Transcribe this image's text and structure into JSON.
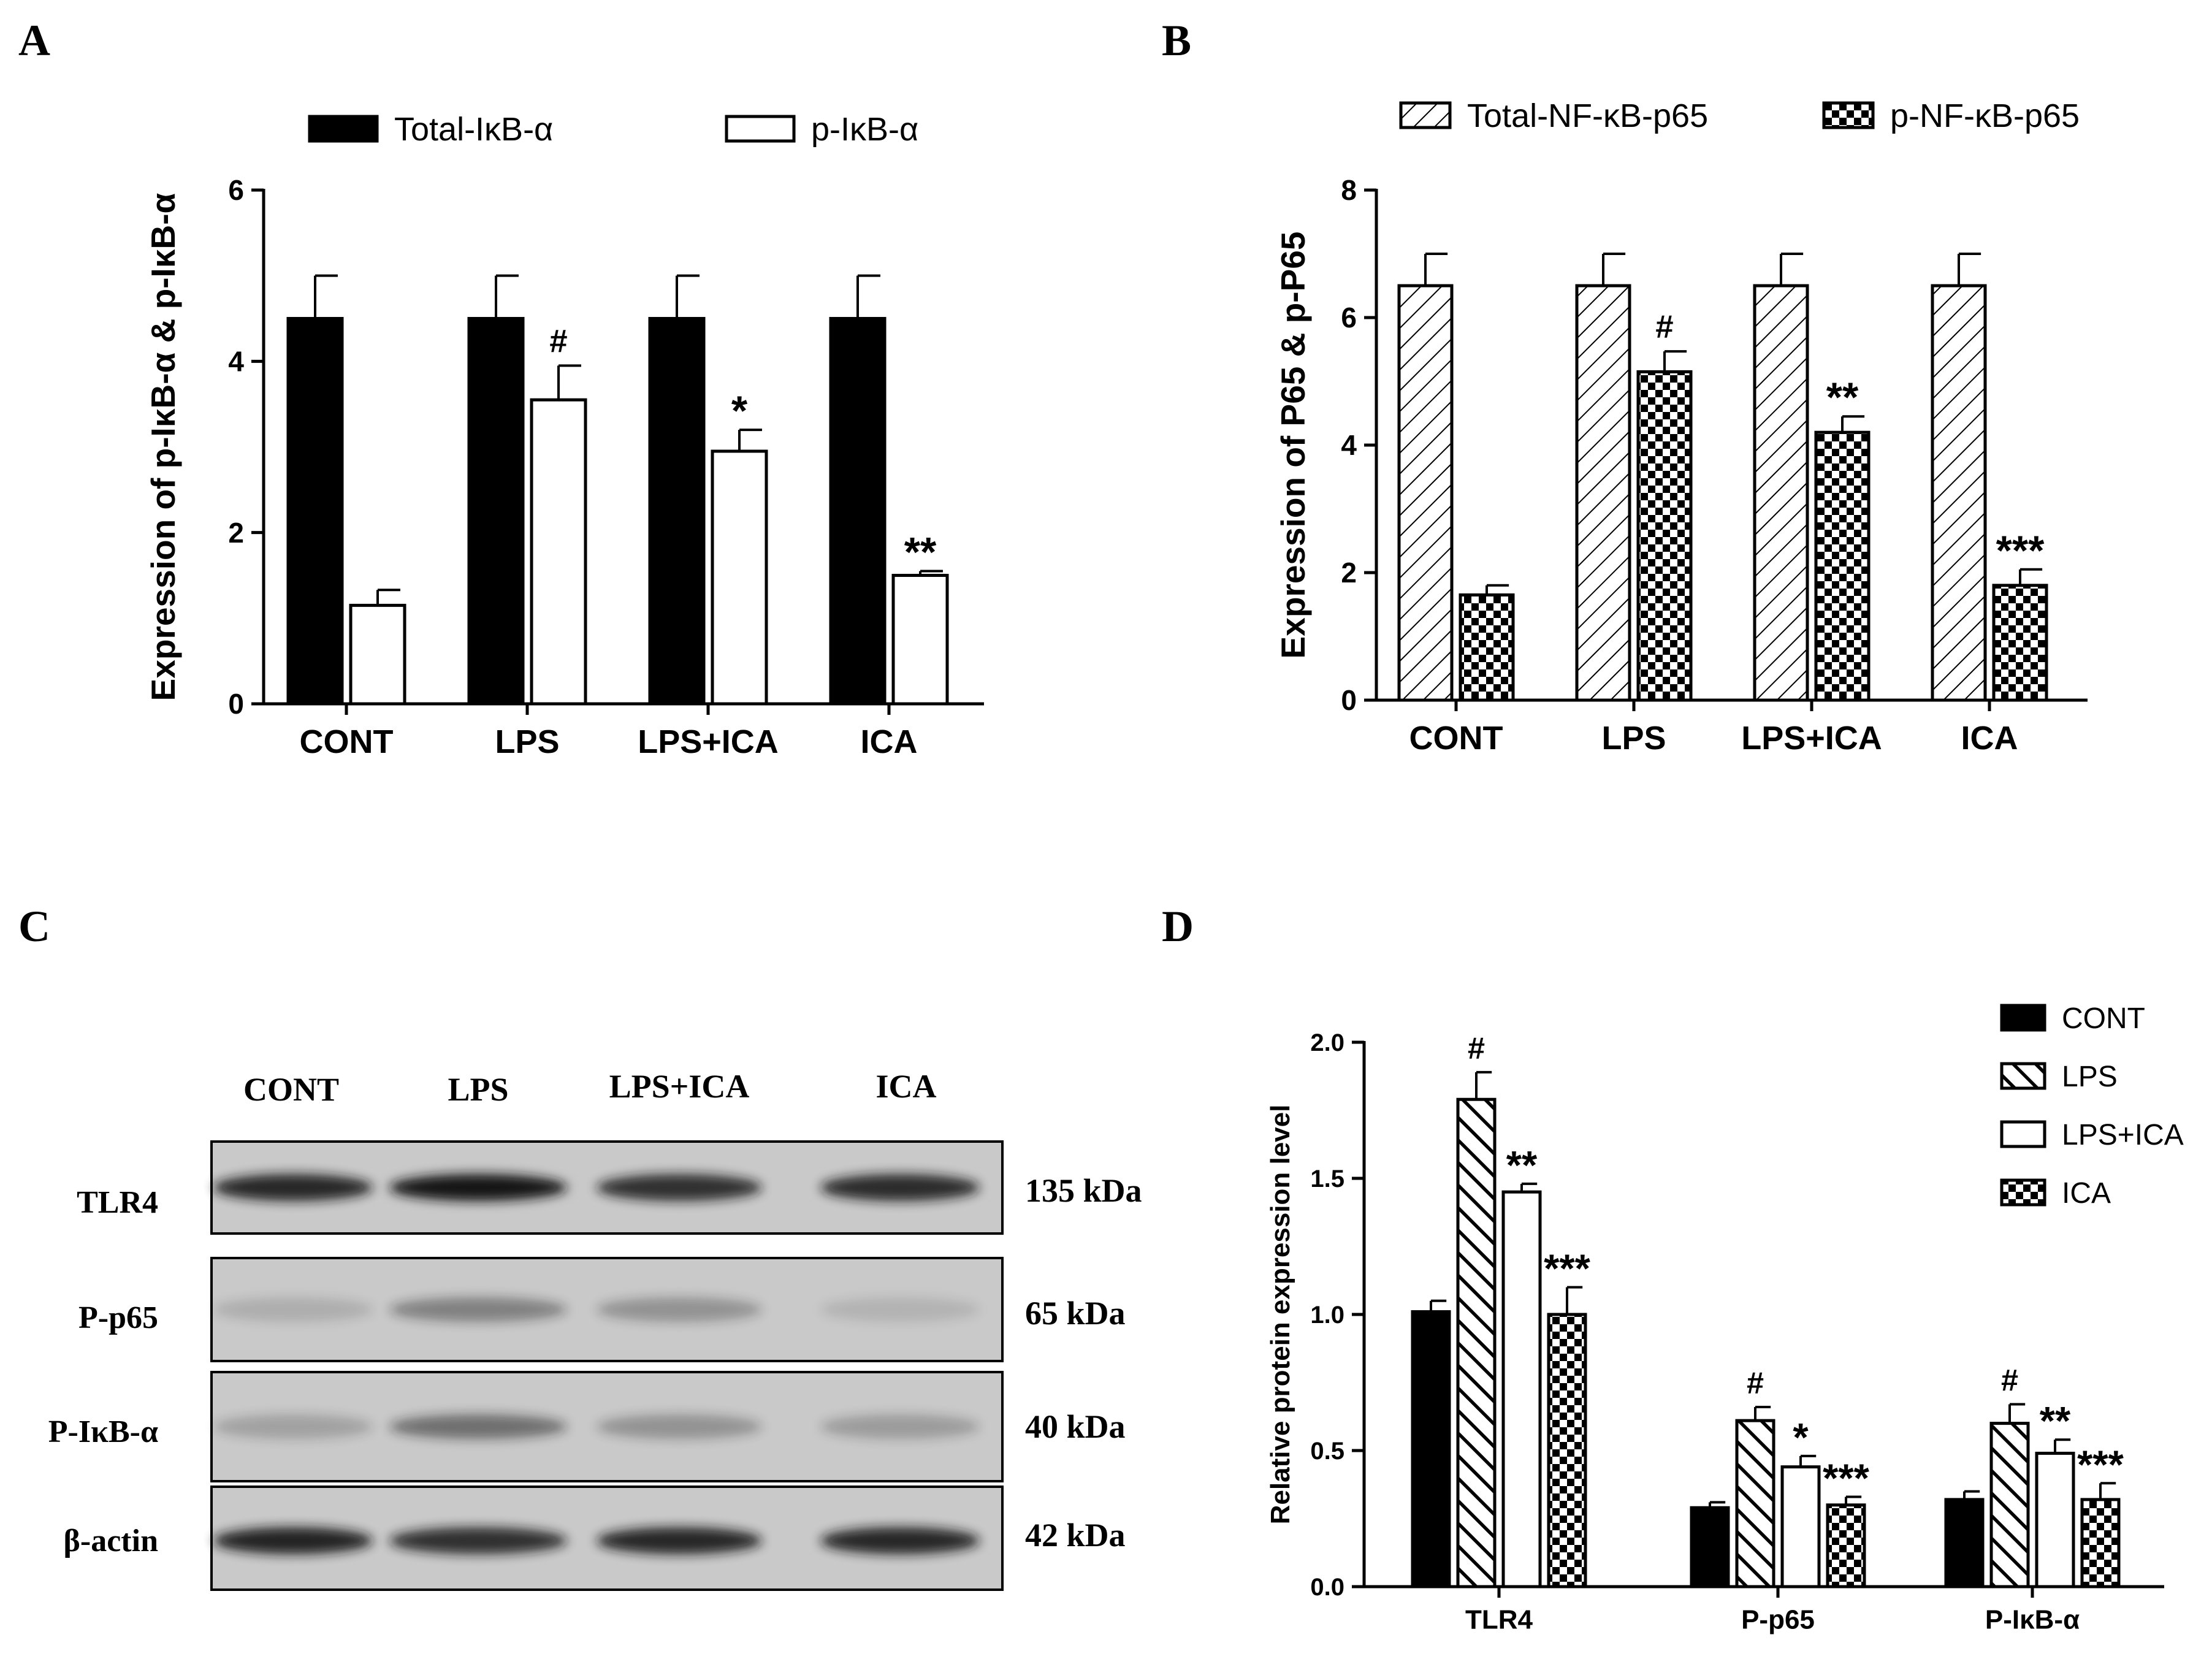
{
  "chart_data": [
    {
      "panel": "A",
      "type": "bar",
      "ylabel": "Expression of p-IκB-α & p-IκB-α",
      "xlabel": "",
      "ylim": [
        0,
        6
      ],
      "yticks": [
        "0",
        "2",
        "4",
        "6"
      ],
      "categories": [
        "CONT",
        "LPS",
        "LPS+ICA",
        "ICA"
      ],
      "legend_position": "top",
      "series": [
        {
          "name": "Total-IκB-α",
          "fill": "solid",
          "values": [
            4.5,
            4.5,
            4.5,
            4.5
          ],
          "errors": [
            0.5,
            0.5,
            0.5,
            0.5
          ],
          "marks": [
            "",
            "",
            "",
            ""
          ]
        },
        {
          "name": "p-IκB-α",
          "fill": "white",
          "values": [
            1.15,
            3.55,
            2.95,
            1.5
          ],
          "errors": [
            0.18,
            0.4,
            0.25,
            0.05
          ],
          "marks": [
            "",
            "#",
            "*",
            "**"
          ]
        }
      ]
    },
    {
      "panel": "B",
      "type": "bar",
      "ylabel": "Expression of P65 & p-P65",
      "xlabel": "",
      "ylim": [
        0,
        8
      ],
      "yticks": [
        "0",
        "2",
        "4",
        "6",
        "8"
      ],
      "categories": [
        "CONT",
        "LPS",
        "LPS+ICA",
        "ICA"
      ],
      "legend_position": "top",
      "series": [
        {
          "name": "Total-NF-κB-p65",
          "fill": "hatch",
          "values": [
            6.5,
            6.5,
            6.5,
            6.5
          ],
          "errors": [
            0.5,
            0.5,
            0.5,
            0.5
          ],
          "marks": [
            "",
            "",
            "",
            ""
          ]
        },
        {
          "name": "p-NF-κB-p65",
          "fill": "checker",
          "values": [
            1.65,
            5.15,
            4.2,
            1.8
          ],
          "errors": [
            0.15,
            0.32,
            0.25,
            0.25
          ],
          "marks": [
            "",
            "#",
            "**",
            "***"
          ]
        }
      ]
    },
    {
      "panel": "D",
      "type": "bar",
      "ylabel": "Relative protein expression level",
      "xlabel": "",
      "ylim": [
        0,
        2.0
      ],
      "yticks": [
        "0.0",
        "0.5",
        "1.0",
        "1.5",
        "2.0"
      ],
      "categories": [
        "TLR4",
        "P-p65",
        "P-IκB-α"
      ],
      "legend_position": "top-right",
      "series": [
        {
          "name": "CONT",
          "fill": "solid",
          "values": [
            1.01,
            0.29,
            0.32
          ],
          "errors": [
            0.04,
            0.02,
            0.03
          ],
          "marks": [
            "",
            "",
            ""
          ]
        },
        {
          "name": "LPS",
          "fill": "hatch",
          "values": [
            1.79,
            0.61,
            0.6
          ],
          "errors": [
            0.1,
            0.05,
            0.07
          ],
          "marks": [
            "#",
            "#",
            "#"
          ]
        },
        {
          "name": "LPS+ICA",
          "fill": "white",
          "values": [
            1.45,
            0.44,
            0.49
          ],
          "errors": [
            0.03,
            0.04,
            0.05
          ],
          "marks": [
            "**",
            "*",
            "**"
          ]
        },
        {
          "name": "ICA",
          "fill": "checker",
          "values": [
            1.0,
            0.3,
            0.32
          ],
          "errors": [
            0.1,
            0.03,
            0.06
          ],
          "marks": [
            "***",
            "***",
            "***"
          ]
        }
      ]
    }
  ],
  "panel_labels": {
    "a": "A",
    "b": "B",
    "c": "C",
    "d": "D"
  },
  "blot": {
    "lanes": [
      "CONT",
      "LPS",
      "LPS+ICA",
      "ICA"
    ],
    "rows": [
      {
        "name": "TLR4",
        "kda": "135 kDa",
        "intensities": [
          0.9,
          1.0,
          0.85,
          0.88
        ]
      },
      {
        "name": "P-p65",
        "kda": "65 kDa",
        "intensities": [
          0.15,
          0.4,
          0.3,
          0.12
        ]
      },
      {
        "name": "P-IκB-α",
        "kda": "40 kDa",
        "intensities": [
          0.22,
          0.5,
          0.3,
          0.25
        ]
      },
      {
        "name": "β-actin",
        "kda": "42 kDa",
        "intensities": [
          0.92,
          0.85,
          0.9,
          0.9
        ]
      }
    ]
  },
  "colors": {
    "ink": "#000000",
    "background": "#ffffff",
    "blot_bg": "#c9c9c9",
    "band": "#141414"
  }
}
